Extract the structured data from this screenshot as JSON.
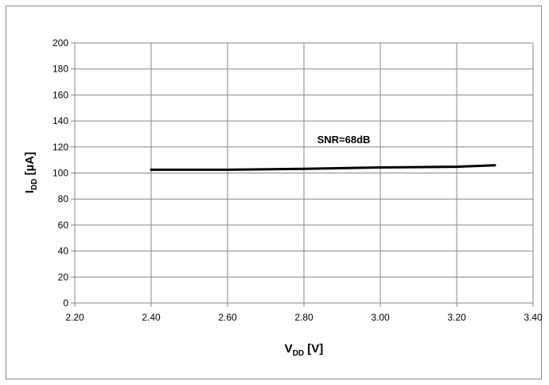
{
  "chart_data": {
    "type": "line",
    "x": [
      2.4,
      2.6,
      2.8,
      3.0,
      3.2,
      3.3
    ],
    "series": [
      {
        "values": [
          102.5,
          102.5,
          103.2,
          104.3,
          104.8,
          106.0
        ]
      }
    ],
    "xlim": [
      2.2,
      3.4
    ],
    "ylim": [
      0,
      200
    ],
    "x_ticks": [
      "2.20",
      "2.40",
      "2.60",
      "2.80",
      "3.00",
      "3.20",
      "3.40"
    ],
    "y_ticks": [
      "0",
      "20",
      "40",
      "60",
      "80",
      "100",
      "120",
      "140",
      "160",
      "180",
      "200"
    ],
    "xlabel_main": "V",
    "xlabel_sub": "DD",
    "xlabel_unit": " [V]",
    "ylabel_main": "I",
    "ylabel_sub": "DD",
    "ylabel_unit": " [µA]",
    "annotation": {
      "text": "SNR=68dB",
      "x": 3.0,
      "y": 123
    },
    "grid": true,
    "line_color": "#000000",
    "grid_color": "#868686"
  }
}
